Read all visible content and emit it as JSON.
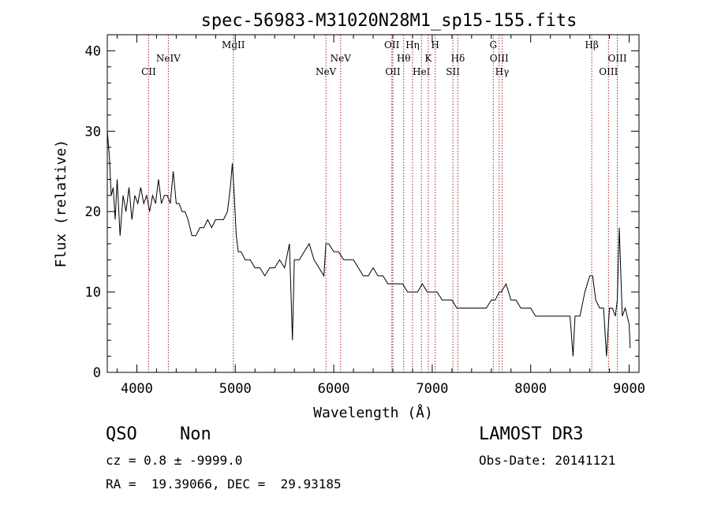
{
  "chart_data": {
    "type": "line",
    "title": "spec-56983-M31020N28M1_sp15-155.fits",
    "xlabel": "Wavelength (Å)",
    "ylabel": "Flux (relative)",
    "xlim": [
      3700,
      9100
    ],
    "ylim": [
      0,
      42
    ],
    "xticks": [
      4000,
      5000,
      6000,
      7000,
      8000,
      9000
    ],
    "yticks": [
      0,
      10,
      20,
      30,
      40
    ],
    "line_color": "#000000",
    "marker_color": "#b22222",
    "series": [
      {
        "x": [
          3700,
          3720,
          3740,
          3760,
          3780,
          3800,
          3830,
          3860,
          3890,
          3920,
          3950,
          3980,
          4010,
          4040,
          4070,
          4100,
          4130,
          4160,
          4190,
          4220,
          4250,
          4280,
          4310,
          4340,
          4370,
          4400,
          4430,
          4460,
          4490,
          4520,
          4560,
          4600,
          4640,
          4680,
          4720,
          4760,
          4800,
          4840,
          4880,
          4920,
          4950,
          4970,
          4990,
          5010,
          5030,
          5060,
          5100,
          5150,
          5200,
          5250,
          5300,
          5350,
          5400,
          5450,
          5500,
          5550,
          5580,
          5600,
          5650,
          5700,
          5750,
          5800,
          5850,
          5900,
          5920,
          5950,
          6000,
          6050,
          6100,
          6150,
          6200,
          6250,
          6300,
          6350,
          6400,
          6450,
          6500,
          6550,
          6600,
          6650,
          6700,
          6750,
          6800,
          6850,
          6900,
          6950,
          7000,
          7050,
          7100,
          7150,
          7200,
          7250,
          7300,
          7350,
          7400,
          7450,
          7500,
          7550,
          7600,
          7640,
          7680,
          7700,
          7750,
          7800,
          7850,
          7900,
          7950,
          8000,
          8050,
          8100,
          8150,
          8200,
          8250,
          8300,
          8350,
          8400,
          8430,
          8450,
          8500,
          8550,
          8600,
          8630,
          8660,
          8700,
          8740,
          8770,
          8800,
          8830,
          8860,
          8880,
          8900,
          8930,
          8960,
          9000,
          9010
        ],
        "y": [
          30,
          27,
          22,
          23,
          19,
          24,
          17,
          22,
          20,
          23,
          19,
          22,
          21,
          23,
          21,
          22,
          20,
          22,
          21,
          24,
          21,
          22,
          22,
          21,
          25,
          21,
          21,
          20,
          20,
          19,
          17,
          17,
          18,
          18,
          19,
          18,
          19,
          19,
          19,
          20,
          23,
          26,
          22,
          17,
          15,
          15,
          14,
          14,
          13,
          13,
          12,
          13,
          13,
          14,
          13,
          16,
          4,
          14,
          14,
          15,
          16,
          14,
          13,
          12,
          16,
          16,
          15,
          15,
          14,
          14,
          14,
          13,
          12,
          12,
          13,
          12,
          12,
          11,
          11,
          11,
          11,
          10,
          10,
          10,
          11,
          10,
          10,
          10,
          9,
          9,
          9,
          8,
          8,
          8,
          8,
          8,
          8,
          8,
          9,
          9,
          10,
          10,
          11,
          9,
          9,
          8,
          8,
          8,
          7,
          7,
          7,
          7,
          7,
          7,
          7,
          7,
          2,
          7,
          7,
          10,
          12,
          12,
          9,
          8,
          8,
          2,
          8,
          8,
          7,
          9,
          18,
          7,
          8,
          6,
          3
        ]
      }
    ],
    "lines": [
      {
        "name": "CII",
        "wave": 4120,
        "label_row": 3
      },
      {
        "name": "NeIV",
        "wave": 4320,
        "label_row": 2
      },
      {
        "name": "MgII",
        "wave": 4980,
        "label_row": 1
      },
      {
        "name": "NeV",
        "wave": 5920,
        "label_row": 3
      },
      {
        "name": "NeV",
        "wave": 6070,
        "label_row": 2
      },
      {
        "name": "OII",
        "wave": 6590,
        "label_row": 1
      },
      {
        "name": "OII",
        "wave": 6600,
        "label_row": 3
      },
      {
        "name": "Hθ",
        "wave": 6710,
        "label_row": 2
      },
      {
        "name": "Hη",
        "wave": 6800,
        "label_row": 1
      },
      {
        "name": "HeI",
        "wave": 6890,
        "label_row": 3
      },
      {
        "name": "K",
        "wave": 6960,
        "label_row": 2
      },
      {
        "name": "H",
        "wave": 7030,
        "label_row": 1
      },
      {
        "name": "SII",
        "wave": 7210,
        "label_row": 3
      },
      {
        "name": "Hδ",
        "wave": 7260,
        "label_row": 2
      },
      {
        "name": "G",
        "wave": 7620,
        "label_row": 1
      },
      {
        "name": "OIII",
        "wave": 7680,
        "label_row": 2
      },
      {
        "name": "Hγ",
        "wave": 7710,
        "label_row": 3
      },
      {
        "name": "Hβ",
        "wave": 8620,
        "label_row": 1
      },
      {
        "name": "OIII",
        "wave": 8790,
        "label_row": 3
      },
      {
        "name": "OIII",
        "wave": 8880,
        "label_row": 2
      }
    ]
  },
  "info": {
    "class": "QSO",
    "subclass": "Non",
    "survey": "LAMOST DR3",
    "cz": "cz = 0.8 ± -9999.0",
    "obs_date": "Obs-Date: 20141121",
    "coords": "RA =  19.39066, DEC =  29.93185"
  }
}
